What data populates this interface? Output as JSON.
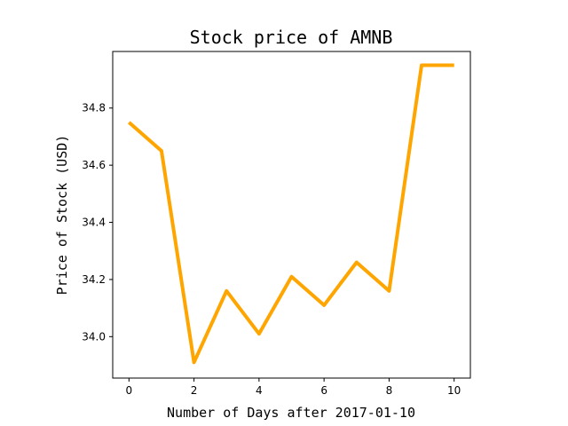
{
  "chart_data": {
    "type": "line",
    "title": "Stock price of AMNB",
    "xlabel": "Number of Days after 2017-01-10",
    "ylabel": "Price of Stock (USD)",
    "x": [
      0,
      1,
      2,
      3,
      4,
      5,
      6,
      7,
      8,
      9,
      10
    ],
    "series": [
      {
        "values": [
          34.75,
          34.65,
          33.91,
          34.16,
          34.01,
          34.21,
          34.11,
          34.26,
          34.16,
          34.95,
          34.95
        ],
        "color": "#ffa500"
      }
    ],
    "xlim": [
      -0.5,
      10.5
    ],
    "ylim": [
      33.855,
      34.998
    ],
    "xticks": [
      0,
      2,
      4,
      6,
      8,
      10
    ],
    "yticks": [
      34.0,
      34.2,
      34.4,
      34.6,
      34.8
    ],
    "ytick_labels": [
      "34.0",
      "34.2",
      "34.4",
      "34.6",
      "34.8"
    ],
    "grid": false
  }
}
